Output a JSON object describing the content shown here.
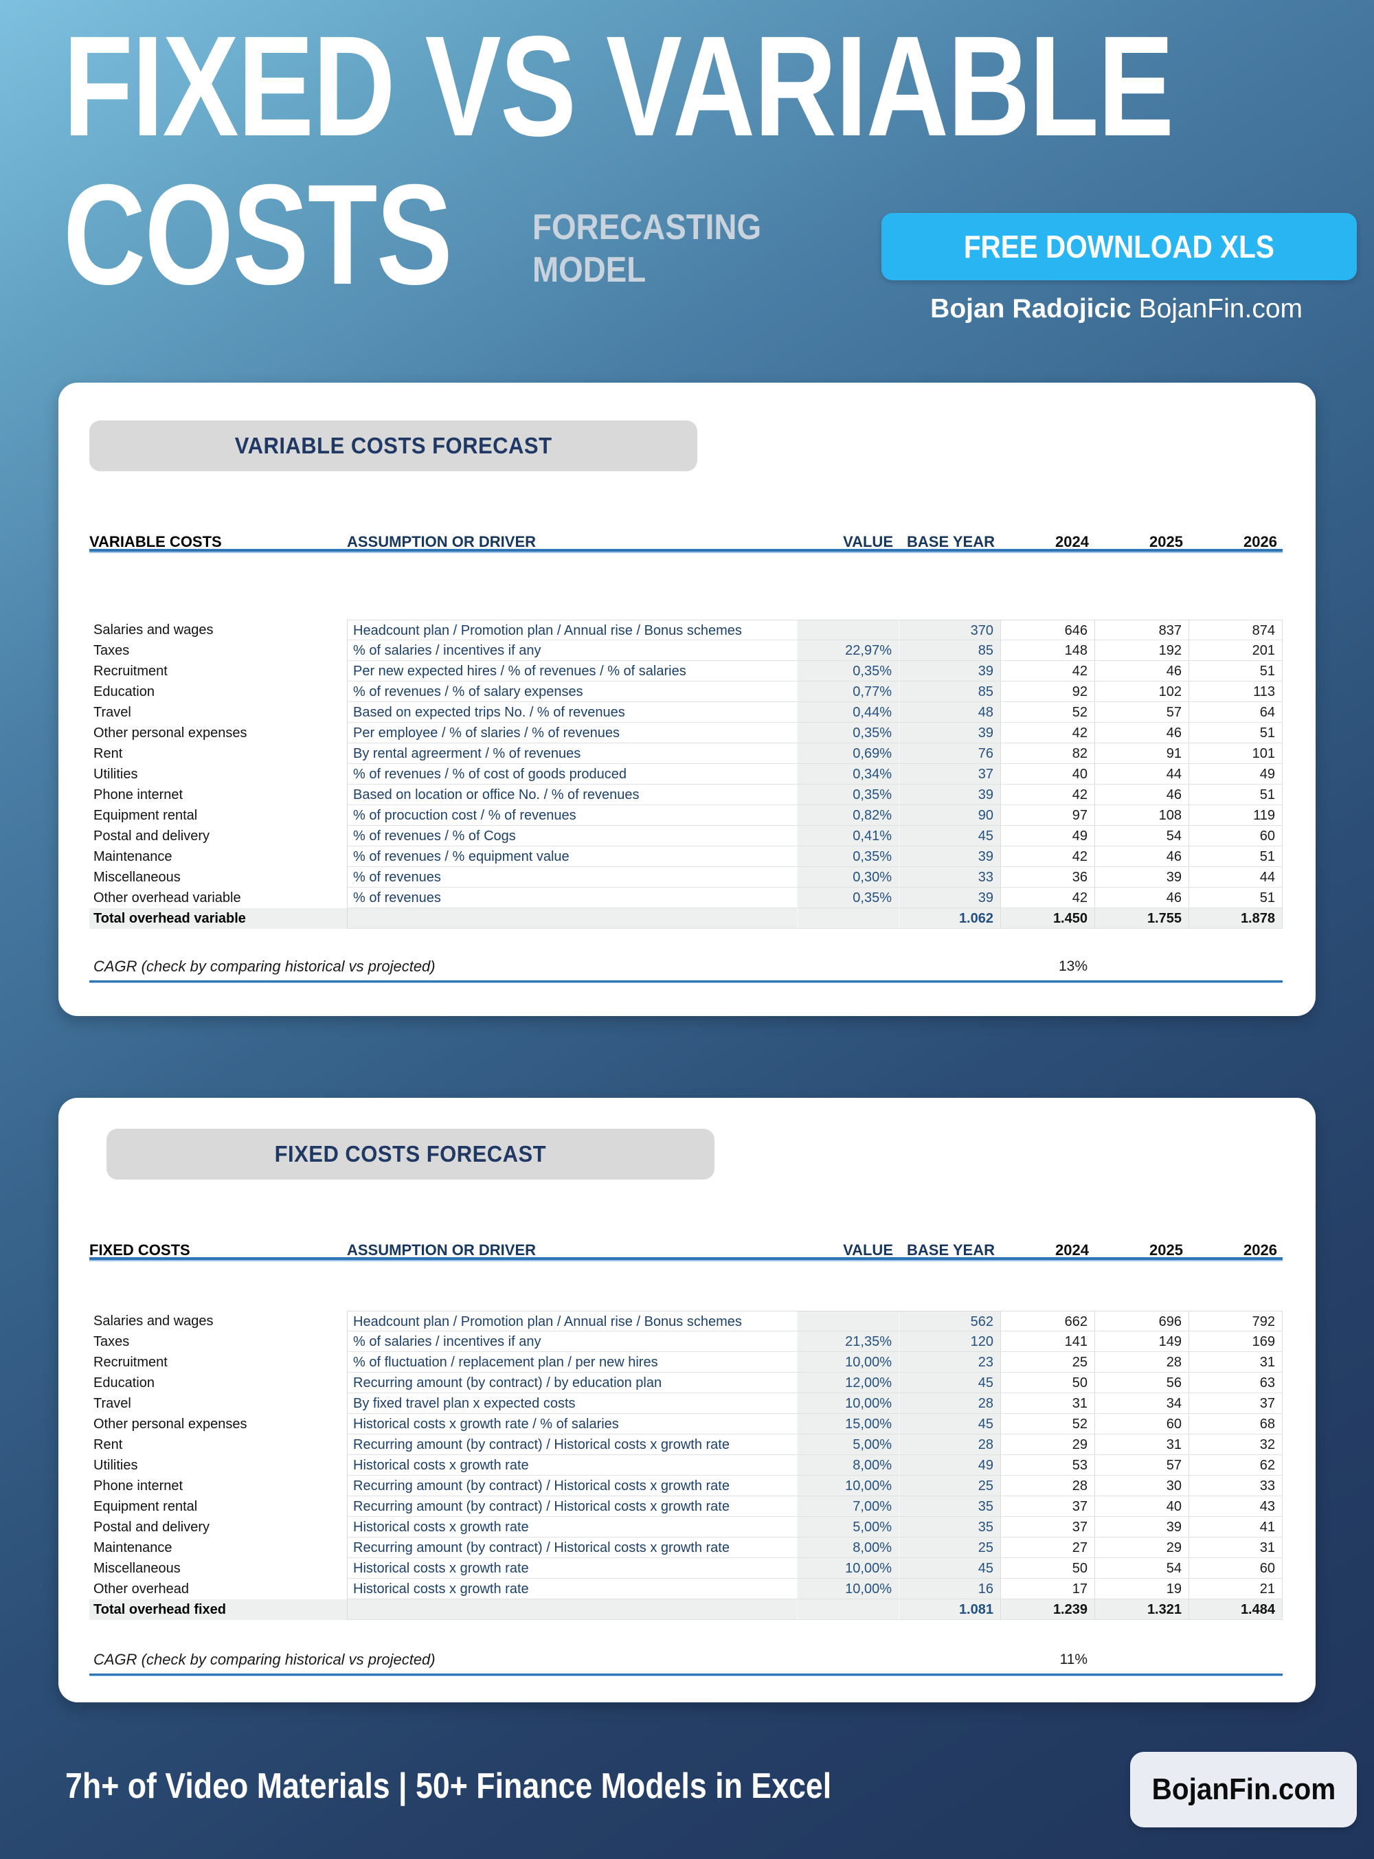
{
  "header": {
    "title_line1": "FIXED VS VARIABLE",
    "title_line2": "COSTS",
    "subtitle_line1": "FORECASTING",
    "subtitle_line2": "MODEL",
    "download_button": "FREE DOWNLOAD XLS",
    "byline_name": "Bojan Radojicic",
    "byline_site": "BojanFin.com"
  },
  "colors": {
    "accent_rule_blue": "#2e75b6",
    "download_button_cyan": "#29b5f2",
    "pill_grey": "#d9d9d9",
    "navy_text": "#1f3864",
    "background_top": "#7ec0df",
    "background_bottom": "#20355b"
  },
  "tables": {
    "variable": {
      "section_title": "VARIABLE COSTS FORECAST",
      "columns": [
        "VARIABLE COSTS",
        "ASSUMPTION OR DRIVER",
        "VALUE",
        "BASE YEAR",
        "2024",
        "2025",
        "2026"
      ],
      "rows": [
        [
          "Salaries and wages",
          "Headcount plan / Promotion plan / Annual rise / Bonus schemes",
          "",
          "370",
          "646",
          "837",
          "874"
        ],
        [
          "Taxes",
          "% of salaries / incentives if any",
          "22,97%",
          "85",
          "148",
          "192",
          "201"
        ],
        [
          "Recruitment",
          "Per new expected hires / % of revenues / % of salaries",
          "0,35%",
          "39",
          "42",
          "46",
          "51"
        ],
        [
          "Education",
          "% of revenues / % of salary expenses",
          "0,77%",
          "85",
          "92",
          "102",
          "113"
        ],
        [
          "Travel",
          "Based on expected trips No. / % of revenues",
          "0,44%",
          "48",
          "52",
          "57",
          "64"
        ],
        [
          "Other personal expenses",
          "Per employee / % of slaries / % of revenues",
          "0,35%",
          "39",
          "42",
          "46",
          "51"
        ],
        [
          "Rent",
          "By rental agreerment / % of revenues",
          "0,69%",
          "76",
          "82",
          "91",
          "101"
        ],
        [
          "Utilities",
          "% of revenues / % of cost of goods produced",
          "0,34%",
          "37",
          "40",
          "44",
          "49"
        ],
        [
          "Phone internet",
          "Based on location or office No. / % of revenues",
          "0,35%",
          "39",
          "42",
          "46",
          "51"
        ],
        [
          "Equipment rental",
          "% of procuction cost / % of revenues",
          "0,82%",
          "90",
          "97",
          "108",
          "119"
        ],
        [
          "Postal and delivery",
          "% of revenues / % of Cogs",
          "0,41%",
          "45",
          "49",
          "54",
          "60"
        ],
        [
          "Maintenance",
          "% of revenues / % equipment value",
          "0,35%",
          "39",
          "42",
          "46",
          "51"
        ],
        [
          "Miscellaneous",
          "% of revenues",
          "0,30%",
          "33",
          "36",
          "39",
          "44"
        ],
        [
          "Other overhead variable",
          "% of revenues",
          "0,35%",
          "39",
          "42",
          "46",
          "51"
        ]
      ],
      "total_row": [
        "Total overhead variable",
        "",
        "",
        "1.062",
        "1.450",
        "1.755",
        "1.878"
      ],
      "cagr_label": "CAGR (check by comparing historical vs projected)",
      "cagr_value": "13%"
    },
    "fixed": {
      "section_title": "FIXED COSTS FORECAST",
      "columns": [
        "FIXED COSTS",
        "ASSUMPTION OR DRIVER",
        "VALUE",
        "BASE YEAR",
        "2024",
        "2025",
        "2026"
      ],
      "rows": [
        [
          "Salaries and wages",
          "Headcount plan / Promotion plan / Annual rise / Bonus schemes",
          "",
          "562",
          "662",
          "696",
          "792"
        ],
        [
          "Taxes",
          "% of salaries / incentives if any",
          "21,35%",
          "120",
          "141",
          "149",
          "169"
        ],
        [
          "Recruitment",
          "% of fluctuation / replacement plan / per new hires",
          "10,00%",
          "23",
          "25",
          "28",
          "31"
        ],
        [
          "Education",
          "Recurring amount (by contract) / by education plan",
          "12,00%",
          "45",
          "50",
          "56",
          "63"
        ],
        [
          "Travel",
          "By fixed travel plan x expected costs",
          "10,00%",
          "28",
          "31",
          "34",
          "37"
        ],
        [
          "Other personal expenses",
          "Historical costs x growth rate / % of salaries",
          "15,00%",
          "45",
          "52",
          "60",
          "68"
        ],
        [
          "Rent",
          "Recurring amount (by contract) / Historical costs x growth rate",
          "5,00%",
          "28",
          "29",
          "31",
          "32"
        ],
        [
          "Utilities",
          "Historical costs x growth rate",
          "8,00%",
          "49",
          "53",
          "57",
          "62"
        ],
        [
          "Phone internet",
          "Recurring amount (by contract) / Historical costs x growth rate",
          "10,00%",
          "25",
          "28",
          "30",
          "33"
        ],
        [
          "Equipment rental",
          "Recurring amount (by contract) / Historical costs x growth rate",
          "7,00%",
          "35",
          "37",
          "40",
          "43"
        ],
        [
          "Postal and delivery",
          "Historical costs x growth rate",
          "5,00%",
          "35",
          "37",
          "39",
          "41"
        ],
        [
          "Maintenance",
          "Recurring amount (by contract) / Historical costs x growth rate",
          "8,00%",
          "25",
          "27",
          "29",
          "31"
        ],
        [
          "Miscellaneous",
          "Historical costs x growth rate",
          "10,00%",
          "45",
          "50",
          "54",
          "60"
        ],
        [
          "Other overhead",
          "Historical costs x growth rate",
          "10,00%",
          "16",
          "17",
          "19",
          "21"
        ]
      ],
      "total_row": [
        "Total overhead fixed",
        "",
        "",
        "1.081",
        "1.239",
        "1.321",
        "1.484"
      ],
      "cagr_label": "CAGR (check by comparing historical vs projected)",
      "cagr_value": "11%"
    }
  },
  "footer": {
    "text": "7h+ of Video Materials | 50+ Finance Models in Excel",
    "brand_button": "BojanFin.com"
  }
}
